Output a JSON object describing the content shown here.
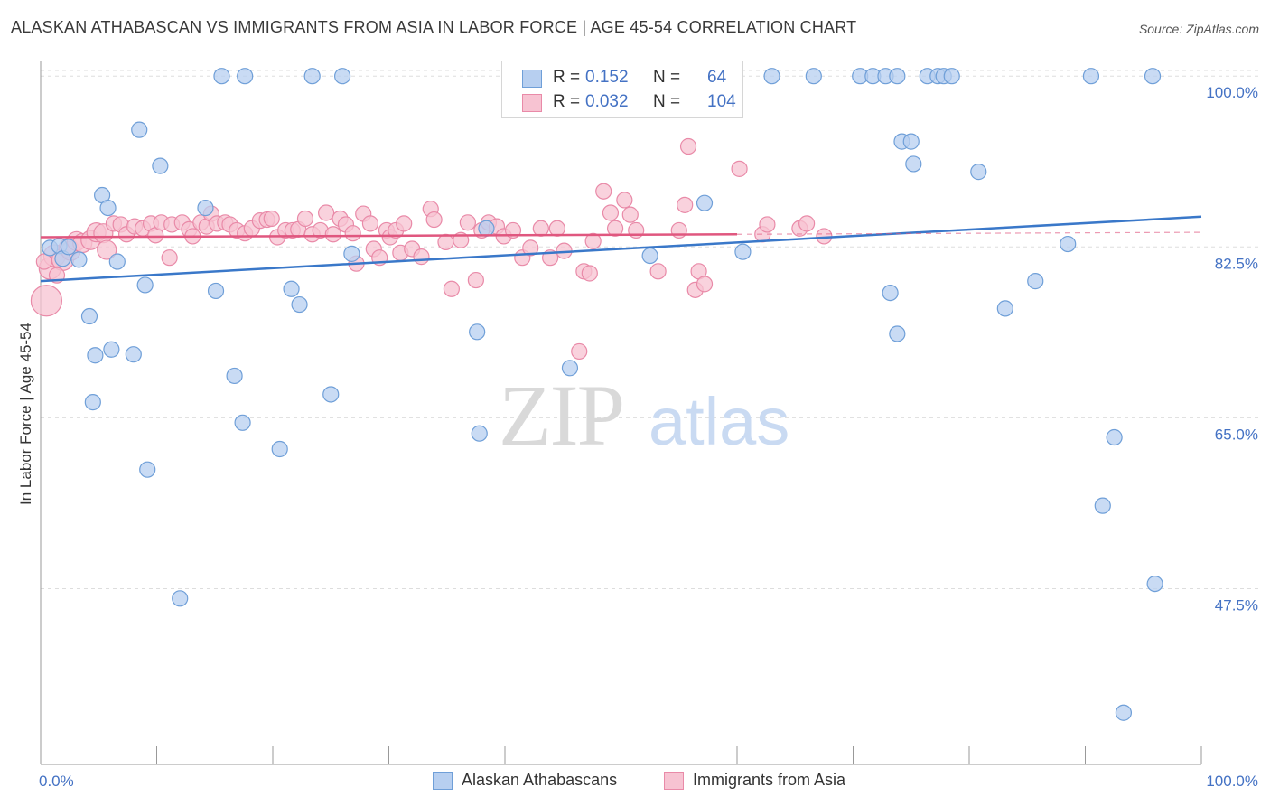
{
  "title": "ALASKAN ATHABASCAN VS IMMIGRANTS FROM ASIA IN LABOR FORCE | AGE 45-54 CORRELATION CHART",
  "source": "Source: ZipAtlas.com",
  "watermark": {
    "zip": "ZIP",
    "atlas": "atlas"
  },
  "legend": {
    "rows": [
      {
        "r_label": "R =",
        "r_value": "0.152",
        "n_label": "N =",
        "n_value": "64"
      },
      {
        "r_label": "R =",
        "r_value": "0.032",
        "n_label": "N =",
        "n_value": "104"
      }
    ]
  },
  "bottom_legend": [
    "Alaskan Athabascans",
    "Immigrants from Asia"
  ],
  "colors": {
    "blue_fill": "#b7cff0",
    "blue_stroke": "#6f9fd8",
    "blue_line": "#3a78c9",
    "pink_fill": "#f7c3d2",
    "pink_stroke": "#e98aa8",
    "pink_line": "#e0577f",
    "tick_text": "#4472c4",
    "grid": "#dddddd"
  },
  "chart_data": {
    "type": "scatter",
    "title": "ALASKAN ATHABASCAN VS IMMIGRANTS FROM ASIA IN LABOR FORCE | AGE 45-54 CORRELATION CHART",
    "xlabel": "",
    "ylabel": "In Labor Force | Age 45-54",
    "xlim": [
      0,
      100
    ],
    "ylim": [
      29.5,
      101.5
    ],
    "x_tick_labels": [
      "0.0%",
      "100.0%"
    ],
    "y_ticks": [
      100.0,
      82.5,
      65.0,
      47.5
    ],
    "y_tick_labels": [
      "100.0%",
      "82.5%",
      "65.0%",
      "47.5%"
    ],
    "grid": true,
    "legend_position": "top-center",
    "series": [
      {
        "name": "Alaskan Athabascans",
        "color": "#6f9fd8",
        "trend": {
          "x": [
            0,
            100
          ],
          "y": [
            79.0,
            85.6
          ]
        },
        "points": [
          [
            0.8,
            82.4
          ],
          [
            1.6,
            82.6
          ],
          [
            1.9,
            81.3
          ],
          [
            2.4,
            82.5
          ],
          [
            3.3,
            81.2
          ],
          [
            4.2,
            75.4
          ],
          [
            4.5,
            66.6
          ],
          [
            4.7,
            71.4
          ],
          [
            5.3,
            87.8
          ],
          [
            5.8,
            86.5
          ],
          [
            6.1,
            72.0
          ],
          [
            6.6,
            81.0
          ],
          [
            8.0,
            71.5
          ],
          [
            8.5,
            94.5
          ],
          [
            9.0,
            78.6
          ],
          [
            9.2,
            59.7
          ],
          [
            10.3,
            90.8
          ],
          [
            12.0,
            46.5
          ],
          [
            14.2,
            86.5
          ],
          [
            15.1,
            78.0
          ],
          [
            15.6,
            100.0
          ],
          [
            16.7,
            69.3
          ],
          [
            17.4,
            64.5
          ],
          [
            17.6,
            100.0
          ],
          [
            20.6,
            61.8
          ],
          [
            21.6,
            78.2
          ],
          [
            22.3,
            76.6
          ],
          [
            23.4,
            100.0
          ],
          [
            25.0,
            67.4
          ],
          [
            26.0,
            100.0
          ],
          [
            26.8,
            81.8
          ],
          [
            37.8,
            63.4
          ],
          [
            37.6,
            73.8
          ],
          [
            38.4,
            84.4
          ],
          [
            45.6,
            70.1
          ],
          [
            52.5,
            81.6
          ],
          [
            55.9,
            100.0
          ],
          [
            56.4,
            100.0
          ],
          [
            57.2,
            87.0
          ],
          [
            57.9,
            100.0
          ],
          [
            60.5,
            82.0
          ],
          [
            63.0,
            100.0
          ],
          [
            66.6,
            100.0
          ],
          [
            70.6,
            100.0
          ],
          [
            71.7,
            100.0
          ],
          [
            72.8,
            100.0
          ],
          [
            73.2,
            77.8
          ],
          [
            73.8,
            73.6
          ],
          [
            73.8,
            100.0
          ],
          [
            74.2,
            93.3
          ],
          [
            75.0,
            93.3
          ],
          [
            75.2,
            91.0
          ],
          [
            76.4,
            100.0
          ],
          [
            77.3,
            100.0
          ],
          [
            77.8,
            100.0
          ],
          [
            78.5,
            100.0
          ],
          [
            80.8,
            90.2
          ],
          [
            83.1,
            76.2
          ],
          [
            85.7,
            79.0
          ],
          [
            88.5,
            82.8
          ],
          [
            90.5,
            100.0
          ],
          [
            91.5,
            56.0
          ],
          [
            92.5,
            63.0
          ],
          [
            93.3,
            34.8
          ],
          [
            95.8,
            100.0
          ],
          [
            96.0,
            48.0
          ]
        ]
      },
      {
        "name": "Immigrants from Asia",
        "color": "#e98aa8",
        "trend": {
          "x": [
            0,
            60
          ],
          "y": [
            83.5,
            83.8
          ]
        },
        "points": [
          [
            0.5,
            77.0
          ],
          [
            0.8,
            80.3
          ],
          [
            1.2,
            81.6
          ],
          [
            1.9,
            81.2
          ],
          [
            2.4,
            82.4
          ],
          [
            2.6,
            82.1
          ],
          [
            3.1,
            83.1
          ],
          [
            3.6,
            82.9
          ],
          [
            4.3,
            83.2
          ],
          [
            4.8,
            84.0
          ],
          [
            5.4,
            83.9
          ],
          [
            5.7,
            82.2
          ],
          [
            6.3,
            84.9
          ],
          [
            6.9,
            84.8
          ],
          [
            7.4,
            83.8
          ],
          [
            8.1,
            84.6
          ],
          [
            8.8,
            84.4
          ],
          [
            9.5,
            84.9
          ],
          [
            9.9,
            83.7
          ],
          [
            10.4,
            85.0
          ],
          [
            11.1,
            81.4
          ],
          [
            11.3,
            84.8
          ],
          [
            12.2,
            85.0
          ],
          [
            12.8,
            84.3
          ],
          [
            13.1,
            83.6
          ],
          [
            13.8,
            85.0
          ],
          [
            14.3,
            84.6
          ],
          [
            14.7,
            85.9
          ],
          [
            15.2,
            84.9
          ],
          [
            15.9,
            85.0
          ],
          [
            16.3,
            84.8
          ],
          [
            16.9,
            84.2
          ],
          [
            17.6,
            83.9
          ],
          [
            18.2,
            84.4
          ],
          [
            18.9,
            85.2
          ],
          [
            19.5,
            85.3
          ],
          [
            19.9,
            85.4
          ],
          [
            20.4,
            83.5
          ],
          [
            21.1,
            84.2
          ],
          [
            21.7,
            84.2
          ],
          [
            22.2,
            84.3
          ],
          [
            22.8,
            85.4
          ],
          [
            23.4,
            83.8
          ],
          [
            24.1,
            84.2
          ],
          [
            24.6,
            86.0
          ],
          [
            25.2,
            83.8
          ],
          [
            25.8,
            85.4
          ],
          [
            26.3,
            84.8
          ],
          [
            26.9,
            83.9
          ],
          [
            27.2,
            80.8
          ],
          [
            27.8,
            85.9
          ],
          [
            28.4,
            84.9
          ],
          [
            28.7,
            82.3
          ],
          [
            29.2,
            81.4
          ],
          [
            29.8,
            84.2
          ],
          [
            30.1,
            83.5
          ],
          [
            30.6,
            84.2
          ],
          [
            31.0,
            81.9
          ],
          [
            31.3,
            84.9
          ],
          [
            32.0,
            82.3
          ],
          [
            32.8,
            81.5
          ],
          [
            33.6,
            86.4
          ],
          [
            33.9,
            85.3
          ],
          [
            34.9,
            83.0
          ],
          [
            35.4,
            78.2
          ],
          [
            36.2,
            83.2
          ],
          [
            36.8,
            85.0
          ],
          [
            37.5,
            79.1
          ],
          [
            38.0,
            84.2
          ],
          [
            38.6,
            85.0
          ],
          [
            39.3,
            84.6
          ],
          [
            39.9,
            83.6
          ],
          [
            40.7,
            84.2
          ],
          [
            41.5,
            81.4
          ],
          [
            42.2,
            82.4
          ],
          [
            43.1,
            84.4
          ],
          [
            43.9,
            81.4
          ],
          [
            44.5,
            84.4
          ],
          [
            45.1,
            82.1
          ],
          [
            46.4,
            71.8
          ],
          [
            46.8,
            80.0
          ],
          [
            47.3,
            79.8
          ],
          [
            47.6,
            83.1
          ],
          [
            48.5,
            88.2
          ],
          [
            49.1,
            86.0
          ],
          [
            49.5,
            84.4
          ],
          [
            50.3,
            87.3
          ],
          [
            50.8,
            85.8
          ],
          [
            51.3,
            84.2
          ],
          [
            53.2,
            80.0
          ],
          [
            55.0,
            84.2
          ],
          [
            55.5,
            86.8
          ],
          [
            55.8,
            92.8
          ],
          [
            56.4,
            78.1
          ],
          [
            56.7,
            80.0
          ],
          [
            57.2,
            78.7
          ],
          [
            60.2,
            90.5
          ],
          [
            62.2,
            83.8
          ],
          [
            62.6,
            84.8
          ],
          [
            65.4,
            84.4
          ],
          [
            66.0,
            84.9
          ],
          [
            67.5,
            83.6
          ],
          [
            0.3,
            81.0
          ],
          [
            1.4,
            79.6
          ]
        ]
      }
    ]
  }
}
